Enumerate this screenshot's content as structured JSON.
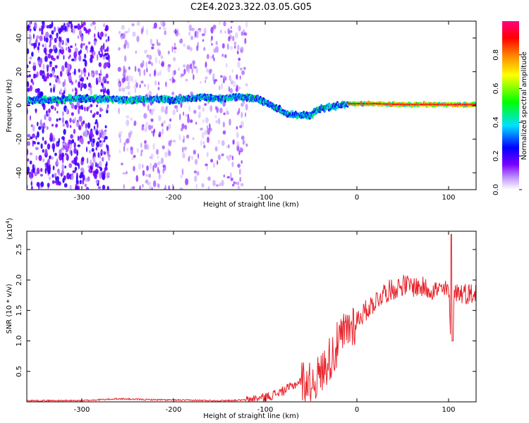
{
  "title": "C2E4.2023.322.03.05.G05",
  "chart_data": [
    {
      "type": "heatmap",
      "xlabel": "Height of straight line (km)",
      "ylabel": "Frequency (Hz)",
      "xlim": [
        -360,
        130
      ],
      "ylim": [
        -50,
        50
      ],
      "x_ticks": [
        -300,
        -200,
        -100,
        0,
        100
      ],
      "x_tick_labels": [
        "-300",
        "-200",
        "-100",
        "0",
        "100"
      ],
      "y_ticks": [
        40,
        20,
        0,
        -20,
        -40
      ],
      "y_tick_labels": [
        "40",
        "20",
        "0",
        "-20",
        "-40"
      ],
      "colorbar": {
        "label": "Normalized spectral amplitude",
        "range": [
          0,
          1
        ],
        "ticks": [
          0.0,
          0.2,
          0.4,
          0.6,
          0.8
        ],
        "tick_labels": [
          "0.0",
          "0.2",
          "0.4",
          "0.6",
          "0.8"
        ],
        "colormap": [
          "#ffffff",
          "#7a00ff",
          "#0000ff",
          "#00e0ff",
          "#00ff00",
          "#ffff00",
          "#ff8000",
          "#ff0000",
          "#ff0080"
        ]
      },
      "signal_trace": {
        "x": [
          -350,
          -300,
          -270,
          -250,
          -220,
          -200,
          -170,
          -150,
          -130,
          -110,
          -100,
          -90,
          -80,
          -75,
          -60,
          -50,
          -45,
          -40,
          -30,
          -20,
          -10,
          0,
          20,
          50,
          100,
          130
        ],
        "y": [
          3,
          4,
          4,
          3,
          4,
          3,
          5,
          4,
          5,
          4,
          2,
          -1,
          -4,
          -5,
          -6,
          -6,
          -3,
          -2,
          -1,
          0,
          1,
          1,
          1,
          0.5,
          0.5,
          0.5
        ]
      },
      "noise_regions": [
        {
          "x_range": [
            -360,
            -270
          ],
          "density": "dense"
        },
        {
          "x_range": [
            -260,
            -120
          ],
          "density": "sparse"
        }
      ],
      "grid": false
    },
    {
      "type": "line",
      "xlabel": "Height of straight line (km)",
      "ylabel": "SNR (10 * v/v)",
      "y_scale_label": "(x10",
      "y_scale_exponent": "4",
      "y_scale_suffix": ")",
      "xlim": [
        -360,
        130
      ],
      "ylim": [
        0,
        2.8
      ],
      "x_ticks": [
        -300,
        -200,
        -100,
        0,
        100
      ],
      "x_tick_labels": [
        "-300",
        "-200",
        "-100",
        "0",
        "100"
      ],
      "y_ticks": [
        0.5,
        1.0,
        1.5,
        2.0,
        2.5
      ],
      "y_tick_labels": [
        "0.5",
        "1.0",
        "1.5",
        "2.0",
        "2.5"
      ],
      "series": [
        {
          "color": "#e8232a",
          "x": [
            -360,
            -300,
            -260,
            -240,
            -200,
            -150,
            -120,
            -100,
            -80,
            -60,
            -50,
            -40,
            -30,
            -20,
            -10,
            0,
            10,
            20,
            30,
            40,
            50,
            60,
            70,
            80,
            90,
            100,
            103,
            106,
            110,
            120,
            130
          ],
          "y": [
            0.02,
            0.02,
            0.05,
            0.04,
            0.03,
            0.02,
            0.03,
            0.07,
            0.18,
            0.35,
            0.3,
            0.45,
            0.7,
            0.95,
            1.2,
            1.35,
            1.5,
            1.65,
            1.8,
            1.85,
            1.92,
            1.9,
            1.88,
            1.85,
            1.83,
            1.82,
            1.0,
            1.82,
            1.8,
            1.78,
            1.78
          ]
        }
      ],
      "grid": false
    }
  ]
}
